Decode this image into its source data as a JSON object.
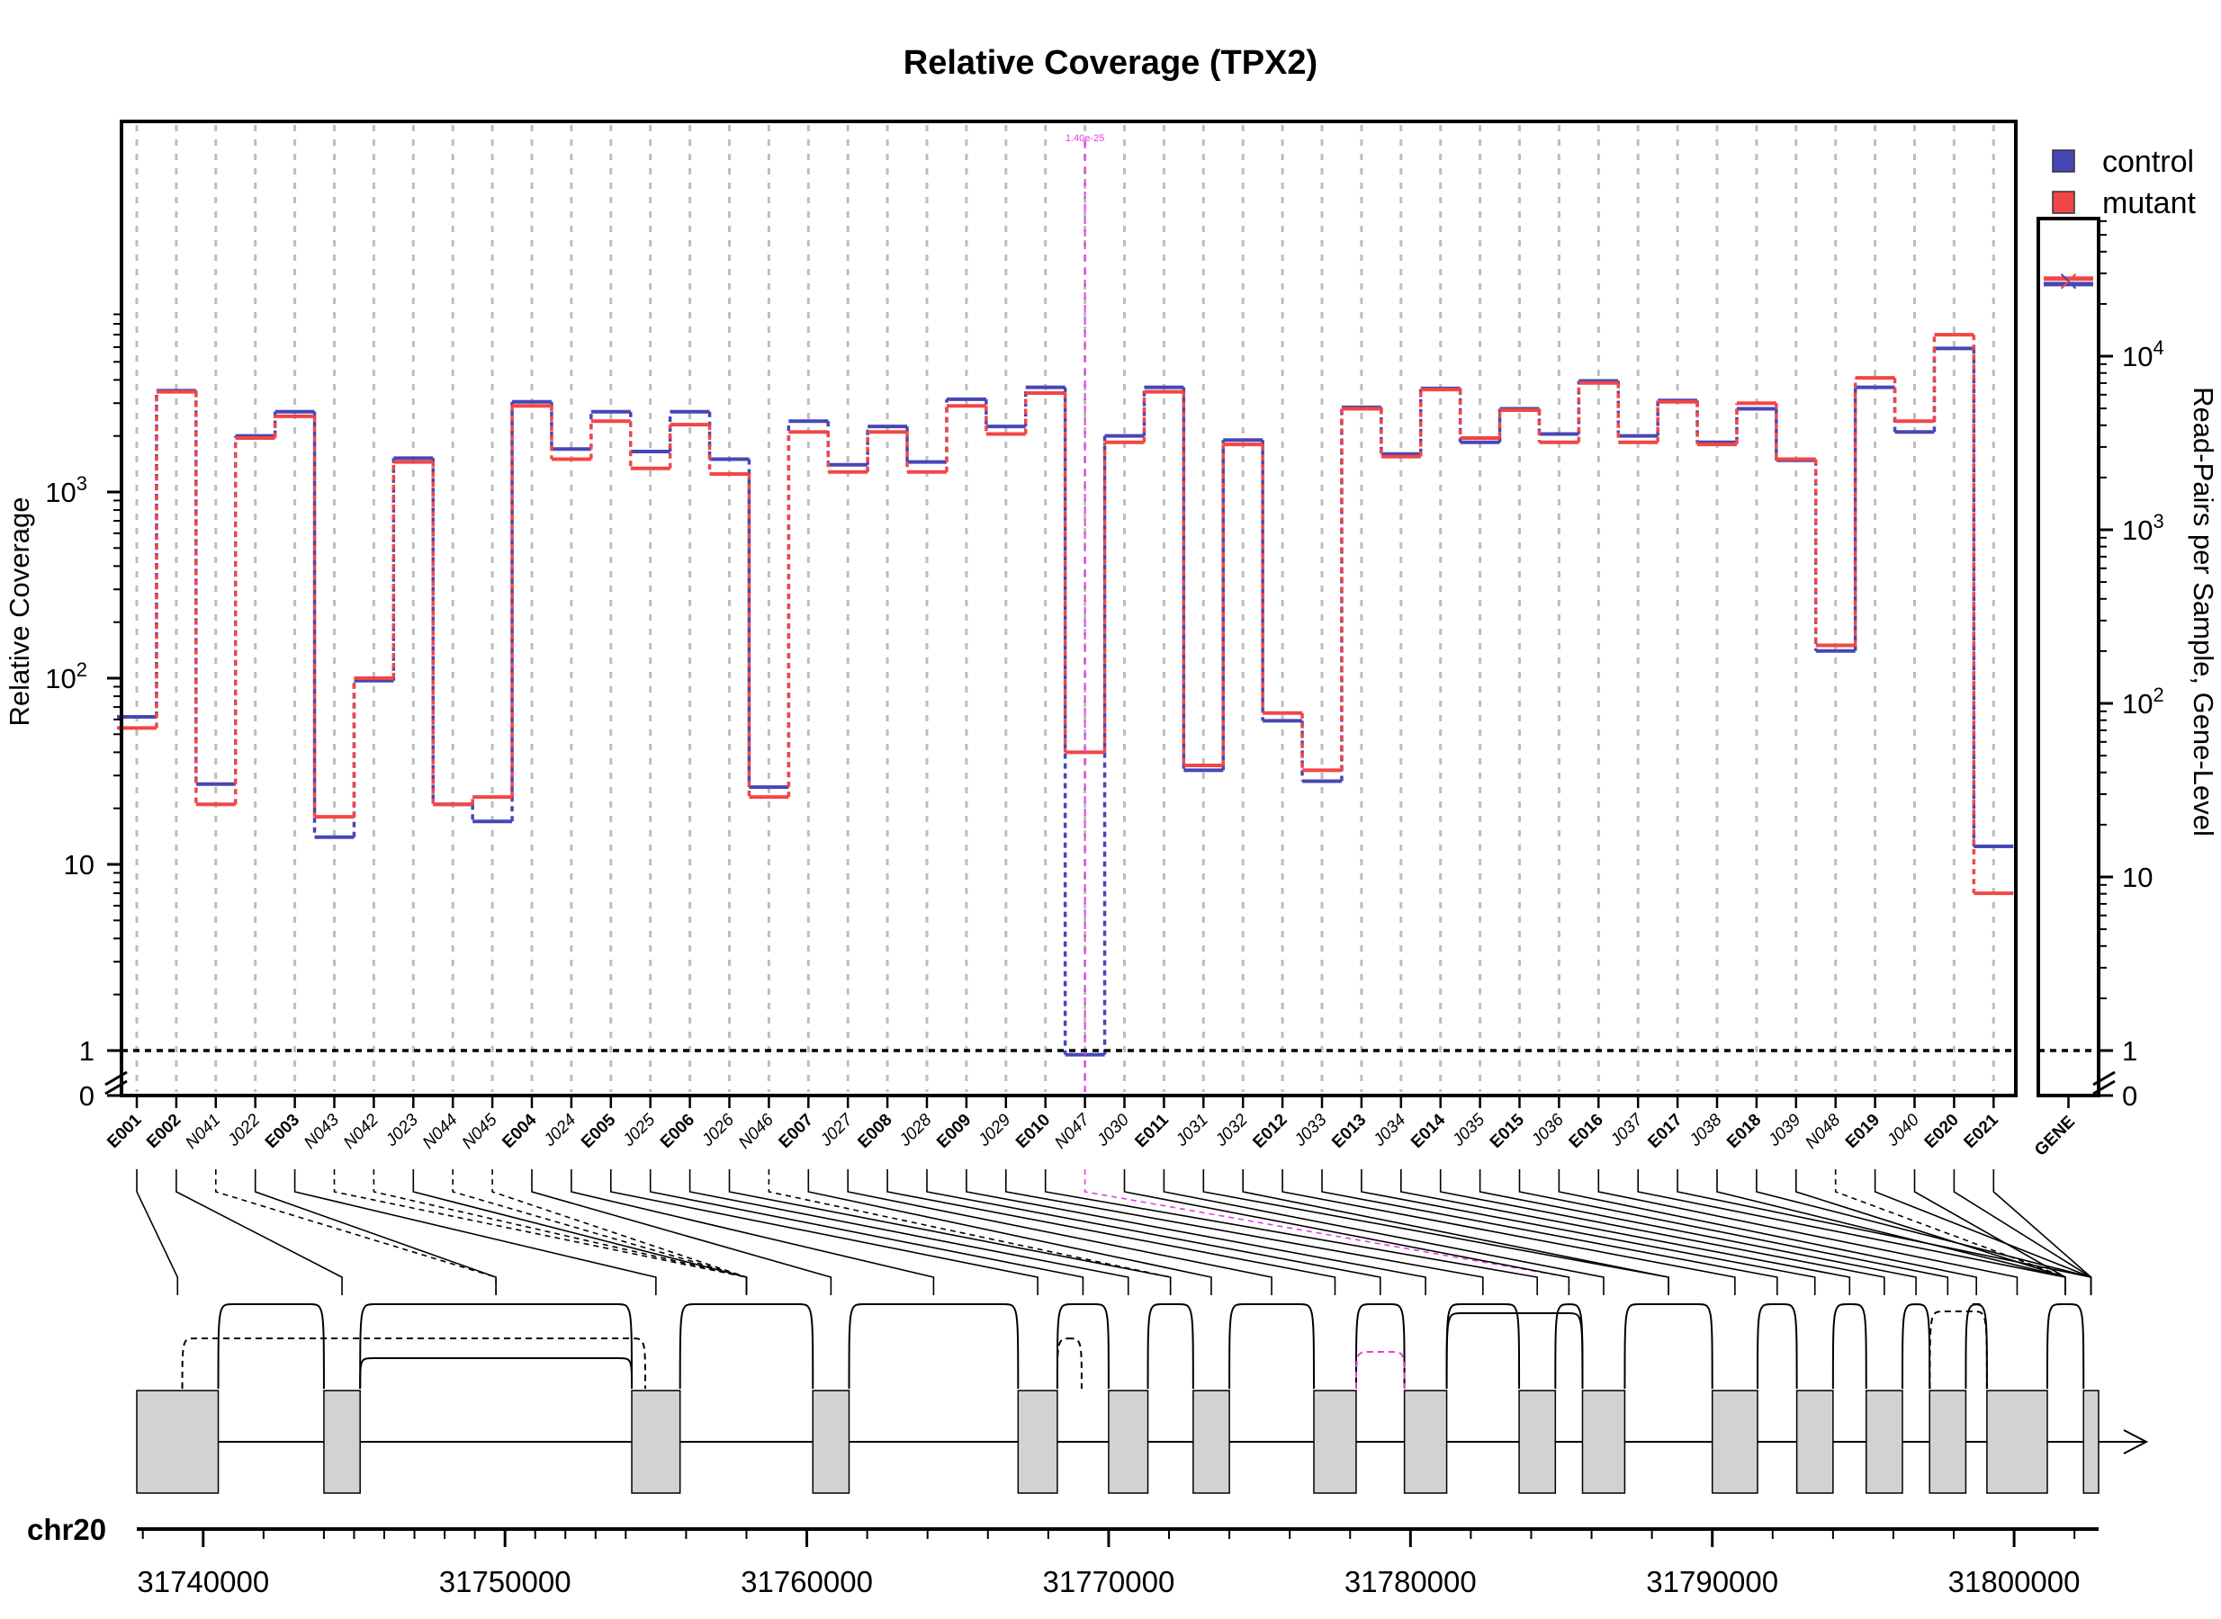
{
  "colors": {
    "control": "#4747b5",
    "mutant": "#f24646",
    "gridline": "#bdbdbd",
    "exon_fill": "#d2d2d2",
    "novel_junction": "#e63ce6"
  },
  "chart_data": {
    "type": "line",
    "title": "Relative Coverage (TPX2)",
    "ylabel": "Relative Coverage",
    "ylabel_right": "Read-Pairs per Sample, Gene-Level",
    "y_scale": "log",
    "y_ticks": [
      "0",
      "1",
      "10",
      "10^2",
      "10^3"
    ],
    "y_ticks_right": [
      "0",
      "1",
      "10",
      "10^2",
      "10^3",
      "10^4"
    ],
    "grid": true,
    "legend_position": "top-right",
    "features": [
      {
        "id": "E001",
        "kind": "exon"
      },
      {
        "id": "E002",
        "kind": "exon"
      },
      {
        "id": "N041",
        "kind": "junction"
      },
      {
        "id": "J022",
        "kind": "junction"
      },
      {
        "id": "E003",
        "kind": "exon"
      },
      {
        "id": "N043",
        "kind": "junction"
      },
      {
        "id": "N042",
        "kind": "junction"
      },
      {
        "id": "J023",
        "kind": "junction"
      },
      {
        "id": "N044",
        "kind": "junction"
      },
      {
        "id": "N045",
        "kind": "junction"
      },
      {
        "id": "E004",
        "kind": "exon"
      },
      {
        "id": "J024",
        "kind": "junction"
      },
      {
        "id": "E005",
        "kind": "exon"
      },
      {
        "id": "J025",
        "kind": "junction"
      },
      {
        "id": "E006",
        "kind": "exon"
      },
      {
        "id": "J026",
        "kind": "junction"
      },
      {
        "id": "N046",
        "kind": "junction"
      },
      {
        "id": "E007",
        "kind": "exon"
      },
      {
        "id": "J027",
        "kind": "junction"
      },
      {
        "id": "E008",
        "kind": "exon"
      },
      {
        "id": "J028",
        "kind": "junction"
      },
      {
        "id": "E009",
        "kind": "exon"
      },
      {
        "id": "J029",
        "kind": "junction"
      },
      {
        "id": "E010",
        "kind": "exon"
      },
      {
        "id": "N047",
        "kind": "junction"
      },
      {
        "id": "J030",
        "kind": "junction"
      },
      {
        "id": "E011",
        "kind": "exon"
      },
      {
        "id": "J031",
        "kind": "junction"
      },
      {
        "id": "J032",
        "kind": "junction"
      },
      {
        "id": "E012",
        "kind": "exon"
      },
      {
        "id": "J033",
        "kind": "junction"
      },
      {
        "id": "E013",
        "kind": "exon"
      },
      {
        "id": "J034",
        "kind": "junction"
      },
      {
        "id": "E014",
        "kind": "exon"
      },
      {
        "id": "J035",
        "kind": "junction"
      },
      {
        "id": "E015",
        "kind": "exon"
      },
      {
        "id": "J036",
        "kind": "junction"
      },
      {
        "id": "E016",
        "kind": "exon"
      },
      {
        "id": "J037",
        "kind": "junction"
      },
      {
        "id": "E017",
        "kind": "exon"
      },
      {
        "id": "J038",
        "kind": "junction"
      },
      {
        "id": "E018",
        "kind": "exon"
      },
      {
        "id": "J039",
        "kind": "junction"
      },
      {
        "id": "N048",
        "kind": "junction"
      },
      {
        "id": "E019",
        "kind": "exon"
      },
      {
        "id": "J040",
        "kind": "junction"
      },
      {
        "id": "E020",
        "kind": "exon"
      },
      {
        "id": "E021",
        "kind": "exon"
      }
    ],
    "series": [
      {
        "name": "control",
        "values": [
          62,
          3500,
          27,
          2000,
          2700,
          14,
          97,
          1520,
          21,
          17,
          3050,
          1700,
          2700,
          1650,
          2700,
          1500,
          26,
          2400,
          1400,
          2250,
          1450,
          3150,
          2250,
          3650,
          0.95,
          2000,
          3650,
          32,
          1900,
          59,
          28,
          2850,
          1600,
          3600,
          1850,
          2800,
          2050,
          3950,
          2000,
          3100,
          1850,
          2800,
          1480,
          140,
          3650,
          2100,
          5900,
          12.5
        ]
      },
      {
        "name": "mutant",
        "values": [
          54,
          3450,
          21,
          1950,
          2550,
          18,
          100,
          1450,
          21,
          23,
          2900,
          1500,
          2400,
          1340,
          2300,
          1250,
          23,
          2100,
          1280,
          2100,
          1280,
          2900,
          2050,
          3400,
          40,
          1850,
          3450,
          34,
          1800,
          65,
          32,
          2800,
          1550,
          3550,
          1950,
          2750,
          1850,
          3850,
          1850,
          3050,
          1800,
          3000,
          1500,
          150,
          4100,
          2400,
          7000,
          7
        ]
      }
    ],
    "gene_panel": {
      "label": "GENE",
      "series": [
        {
          "name": "control",
          "value": 26000
        },
        {
          "name": "mutant",
          "value": 28000
        }
      ]
    },
    "reference_line": 1,
    "annotation": "1.40e-25",
    "genome_track": {
      "chromosome": "chr20",
      "xlim": [
        31737800,
        31802800
      ],
      "tick_labels": [
        31740000,
        31750000,
        31760000,
        31770000,
        31780000,
        31790000,
        31800000
      ]
    }
  }
}
